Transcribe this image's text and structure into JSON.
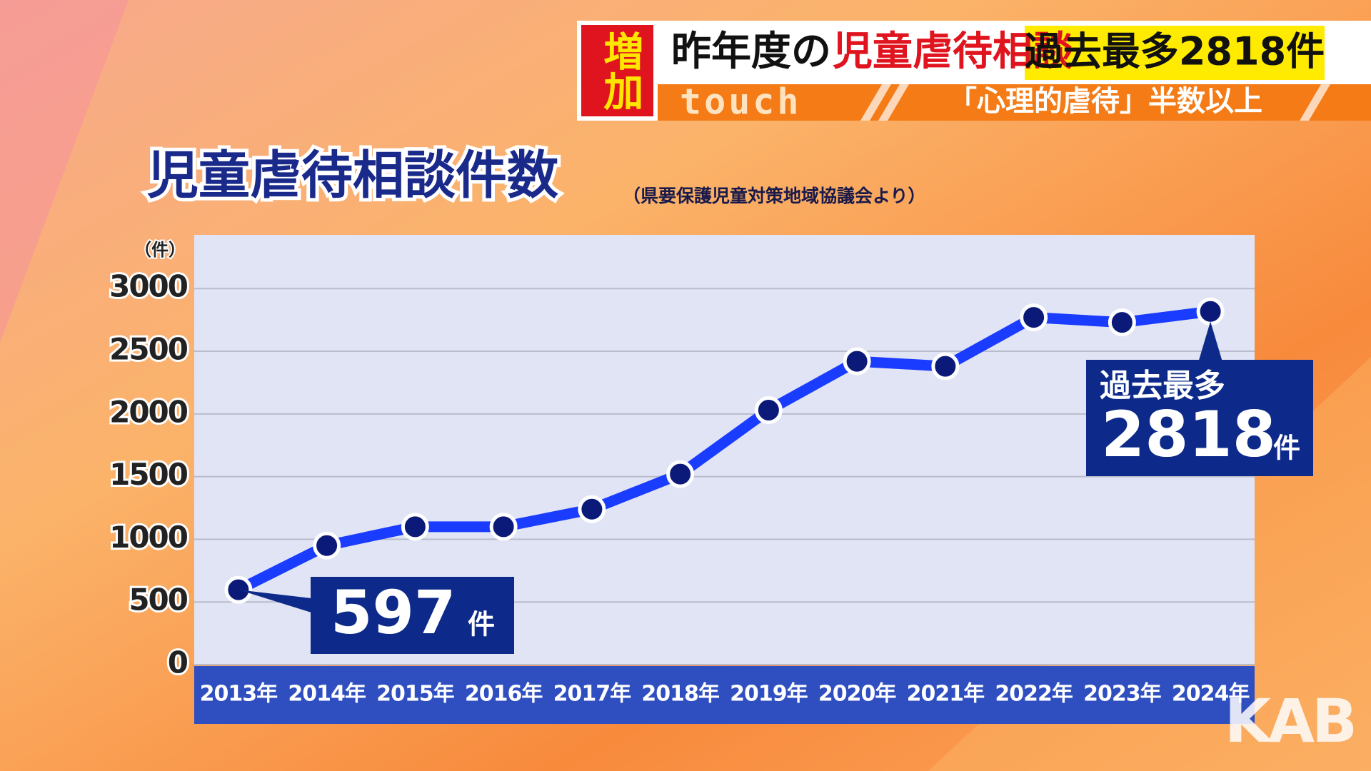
{
  "header": {
    "badge": "増加",
    "headline_prefix": "昨年度の",
    "headline_highlight": "児童虐待相談",
    "headline_box": "過去最多2818件",
    "program": "touch",
    "subheadline": "「心理的虐待」半数以上"
  },
  "logo": "KAB",
  "chart_data": {
    "type": "line",
    "title": "児童虐待相談件数",
    "subtitle": "（県要保護児童対策地域協議会より）",
    "ylabel": "（件）",
    "categories": [
      "2013年",
      "2014年",
      "2015年",
      "2016年",
      "2017年",
      "2018年",
      "2019年",
      "2020年",
      "2021年",
      "2022年",
      "2023年",
      "2024年"
    ],
    "values": [
      597,
      950,
      1100,
      1100,
      1240,
      1520,
      2030,
      2420,
      2380,
      2770,
      2730,
      2818
    ],
    "color": "#1a3cff",
    "marker_color": "#0b1a78",
    "ylim": [
      0,
      3400
    ],
    "yticks": [
      0,
      500,
      1000,
      1500,
      2000,
      2500,
      3000
    ],
    "grid": true,
    "value_unit": "件",
    "record_label": "過去最多"
  }
}
